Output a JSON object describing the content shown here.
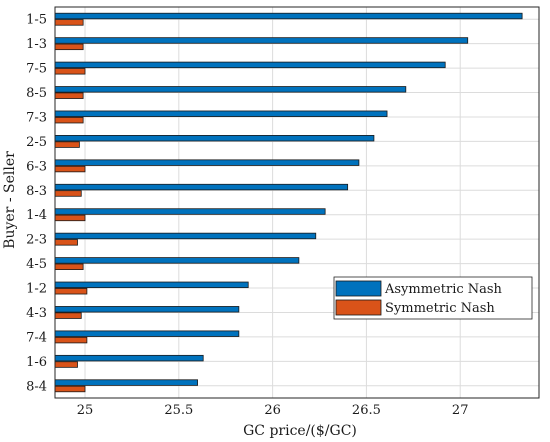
{
  "chart_data": {
    "type": "bar",
    "orientation": "horizontal",
    "categories": [
      "1-5",
      "1-3",
      "7-5",
      "8-5",
      "7-3",
      "2-5",
      "6-3",
      "8-3",
      "1-4",
      "2-3",
      "4-5",
      "1-2",
      "4-3",
      "7-4",
      "1-6",
      "8-4"
    ],
    "series": [
      {
        "name": "Asymmetric Nash",
        "color": "#0072BD",
        "values": [
          27.33,
          27.04,
          26.92,
          26.71,
          26.61,
          26.54,
          26.46,
          26.4,
          26.28,
          26.23,
          26.14,
          25.87,
          25.82,
          25.82,
          25.63,
          25.6
        ]
      },
      {
        "name": "Symmetric Nash",
        "color": "#D95319",
        "values": [
          24.99,
          24.99,
          25.0,
          24.99,
          24.99,
          24.97,
          25.0,
          24.98,
          25.0,
          24.96,
          24.99,
          25.01,
          24.98,
          25.01,
          24.96,
          25.0
        ]
      }
    ],
    "xlabel": "GC price/($/GC)",
    "ylabel": "Buyer - Seller",
    "xlim": [
      24.84,
      27.42
    ],
    "xticks": [
      25,
      25.5,
      26,
      26.5,
      27
    ],
    "xtick_labels": [
      "25",
      "25.5",
      "26",
      "26.5",
      "27"
    ],
    "grid": true,
    "legend_position": "lower-right"
  }
}
